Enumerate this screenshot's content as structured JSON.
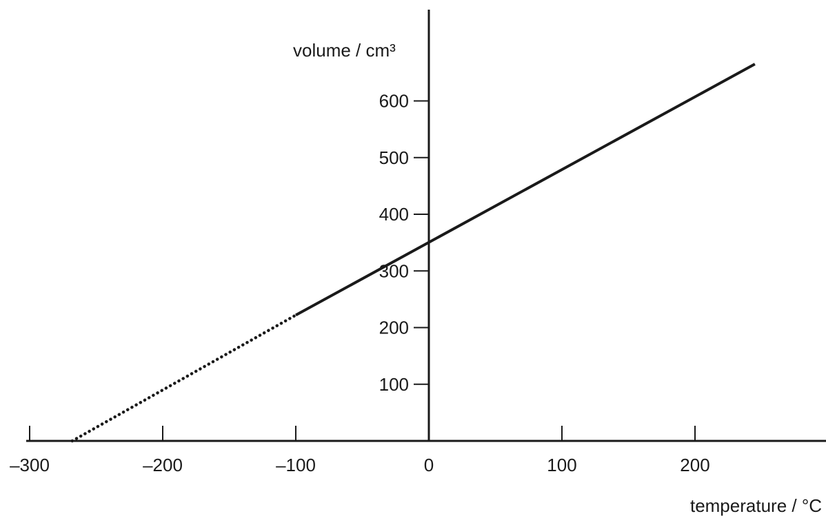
{
  "chart_data": {
    "type": "line",
    "title": "",
    "xlabel": "temperature / °C",
    "ylabel": "volume / cm³",
    "xlim": [
      -300,
      300
    ],
    "ylim": [
      0,
      750
    ],
    "x_ticks": [
      -300,
      -200,
      -100,
      0,
      100,
      200
    ],
    "x_tick_labels": [
      "–300",
      "–200",
      "–100",
      "0",
      "100",
      "200"
    ],
    "y_ticks": [
      100,
      200,
      300,
      400,
      500,
      600
    ],
    "y_tick_labels": [
      "100",
      "200",
      "300",
      "400",
      "500",
      "600"
    ],
    "grid": false,
    "legend": "none",
    "series": [
      {
        "style": "solid",
        "color": "#1a1a1a",
        "x": [
          -100,
          245
        ],
        "y": [
          222,
          665
        ]
      },
      {
        "style": "dotted",
        "color": "#1a1a1a",
        "x": [
          -268,
          -100
        ],
        "y": [
          0,
          222
        ]
      }
    ]
  }
}
